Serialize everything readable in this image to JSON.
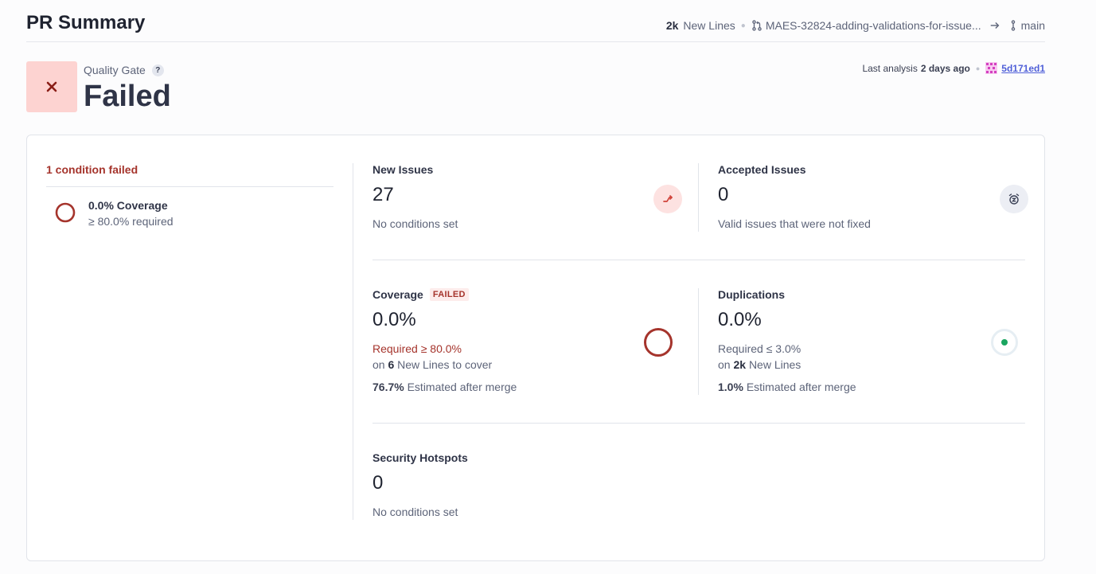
{
  "header": {
    "title": "PR Summary",
    "new_lines_count": "2k",
    "new_lines_label": "New Lines",
    "source_branch": "MAES-32824-adding-validations-for-issue...",
    "target_branch": "main"
  },
  "quality_gate": {
    "label": "Quality Gate",
    "help": "?",
    "status": "Failed"
  },
  "analysis": {
    "prefix": "Last analysis",
    "when": "2 days ago",
    "commit": "5d171ed1"
  },
  "conditions": {
    "title": "1 condition failed",
    "items": [
      {
        "name": "0.0% Coverage",
        "requirement": "≥ 80.0% required"
      }
    ]
  },
  "metrics": {
    "new_issues": {
      "title": "New Issues",
      "value": "27",
      "sub": "No conditions set"
    },
    "accepted_issues": {
      "title": "Accepted Issues",
      "value": "0",
      "sub": "Valid issues that were not fixed"
    },
    "coverage": {
      "title": "Coverage",
      "badge": "FAILED",
      "value": "0.0%",
      "required": "Required ≥ 80.0%",
      "on": "on",
      "lines_count": "6",
      "lines_label": "New Lines to cover",
      "estimate_value": "76.7%",
      "estimate_label": "Estimated after merge"
    },
    "duplications": {
      "title": "Duplications",
      "value": "0.0%",
      "required": "Required ≤ 3.0%",
      "on": "on",
      "lines_count": "2k",
      "lines_label": "New Lines",
      "estimate_value": "1.0%",
      "estimate_label": "Estimated after merge"
    },
    "security_hotspots": {
      "title": "Security Hotspots",
      "value": "0",
      "sub": "No conditions set"
    }
  },
  "colors": {
    "fail_red": "#a5342c",
    "fail_bg": "#fdd3d1",
    "ok_green": "#1aa560",
    "link_blue": "#4f5fd8"
  }
}
